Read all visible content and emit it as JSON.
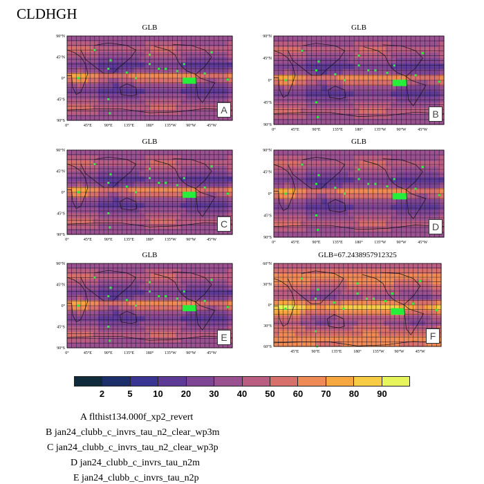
{
  "title": "CLDHGH",
  "panels": [
    {
      "id": "A",
      "title": "GLB",
      "ylabels": [
        "90°N",
        "45°N",
        "0°",
        "45°S",
        "90°S"
      ],
      "xlabels": [
        "0°",
        "45°E",
        "90°E",
        "135°E",
        "180°",
        "135°W",
        "90°W",
        "45°W"
      ]
    },
    {
      "id": "B",
      "title": "GLB",
      "ylabels": [
        "90°N",
        "45°N",
        "0°",
        "45°S",
        "90°S"
      ],
      "xlabels": [
        "0°",
        "45°E",
        "90°E",
        "135°E",
        "180°",
        "135°W",
        "90°W",
        "45°W"
      ]
    },
    {
      "id": "C",
      "title": "GLB",
      "ylabels": [
        "90°N",
        "45°N",
        "0°",
        "45°S",
        "90°S"
      ],
      "xlabels": [
        "0°",
        "45°E",
        "90°E",
        "135°E",
        "180°",
        "135°W",
        "90°W",
        "45°W"
      ]
    },
    {
      "id": "D",
      "title": "GLB",
      "ylabels": [
        "90°N",
        "45°N",
        "0°",
        "45°S",
        "90°S"
      ],
      "xlabels": [
        "0°",
        "45°E",
        "90°E",
        "135°E",
        "180°",
        "135°W",
        "90°W",
        "45°W"
      ]
    },
    {
      "id": "E",
      "title": "GLB",
      "ylabels": [
        "90°N",
        "45°N",
        "0°",
        "45°S",
        "90°S"
      ],
      "xlabels": [
        "0°",
        "45°E",
        "90°E",
        "135°E",
        "180°",
        "135°W",
        "90°W",
        "45°W"
      ]
    },
    {
      "id": "F",
      "title": "GLB=67.2438957912325",
      "ylabels": [
        "60°N",
        "30°N",
        "0°",
        "30°S",
        "60°S"
      ],
      "xlabels": [
        "45°E",
        "90°E",
        "135°E",
        "180°",
        "135°W",
        "90°W",
        "45°W"
      ]
    }
  ],
  "colorbar": {
    "labels": [
      "2",
      "5",
      "10",
      "20",
      "30",
      "40",
      "50",
      "60",
      "70",
      "80",
      "90"
    ],
    "colors": [
      "#0f2a3a",
      "#1c2f6a",
      "#3a3592",
      "#5d3a96",
      "#7d4593",
      "#9a5190",
      "#b95d81",
      "#d76f6b",
      "#ee8a55",
      "#f7a73f",
      "#f8cc45",
      "#e7f55c"
    ]
  },
  "legend": [
    "A  flthist134.000f_xp2_revert",
    "B  jan24_clubb_c_invrs_tau_n2_clear_wp3m",
    "C  jan24_clubb_c_invrs_tau_n2_clear_wp3p",
    "D  jan24_clubb_c_invrs_tau_n2m",
    "E  jan24_clubb_c_invrs_tau_n2p"
  ],
  "chart_data": [
    {
      "type": "heatmap",
      "panel": "A",
      "title": "GLB",
      "variable": "CLDHGH",
      "xlim": [
        0,
        360
      ],
      "ylim": [
        -90,
        90
      ],
      "colorbar_levels": [
        2,
        5,
        10,
        20,
        30,
        40,
        50,
        60,
        70,
        80,
        90
      ]
    },
    {
      "type": "heatmap",
      "panel": "B",
      "title": "GLB",
      "variable": "CLDHGH",
      "xlim": [
        0,
        360
      ],
      "ylim": [
        -90,
        90
      ],
      "colorbar_levels": [
        2,
        5,
        10,
        20,
        30,
        40,
        50,
        60,
        70,
        80,
        90
      ]
    },
    {
      "type": "heatmap",
      "panel": "C",
      "title": "GLB",
      "variable": "CLDHGH",
      "xlim": [
        0,
        360
      ],
      "ylim": [
        -90,
        90
      ],
      "colorbar_levels": [
        2,
        5,
        10,
        20,
        30,
        40,
        50,
        60,
        70,
        80,
        90
      ]
    },
    {
      "type": "heatmap",
      "panel": "D",
      "title": "GLB",
      "variable": "CLDHGH",
      "xlim": [
        0,
        360
      ],
      "ylim": [
        -90,
        90
      ],
      "colorbar_levels": [
        2,
        5,
        10,
        20,
        30,
        40,
        50,
        60,
        70,
        80,
        90
      ]
    },
    {
      "type": "heatmap",
      "panel": "E",
      "title": "GLB",
      "variable": "CLDHGH",
      "xlim": [
        0,
        360
      ],
      "ylim": [
        -90,
        90
      ],
      "colorbar_levels": [
        2,
        5,
        10,
        20,
        30,
        40,
        50,
        60,
        70,
        80,
        90
      ]
    },
    {
      "type": "heatmap",
      "panel": "F",
      "title": "GLB=67.2438957912325",
      "global_mean": 67.2438957912325,
      "variable": "CLDHGH",
      "xlim": [
        0,
        360
      ],
      "ylim": [
        -75,
        90
      ],
      "colorbar_levels": [
        2,
        5,
        10,
        20,
        30,
        40,
        50,
        60,
        70,
        80,
        90
      ]
    }
  ]
}
